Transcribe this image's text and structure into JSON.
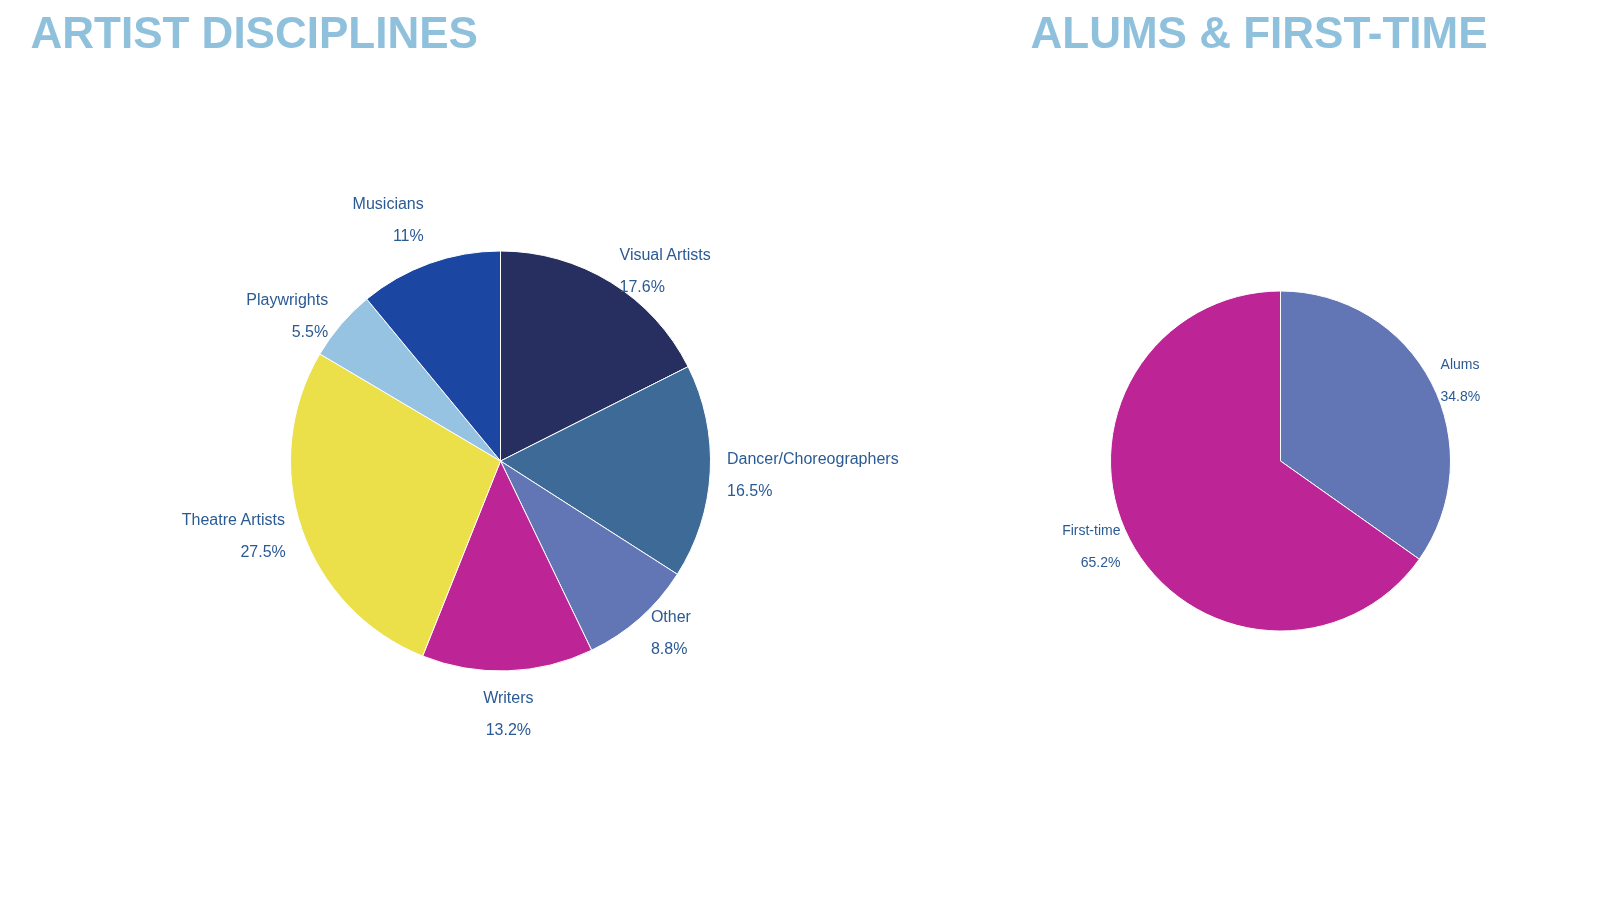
{
  "chart_data": [
    {
      "type": "pie",
      "title": "ARTIST DISCIPLINES",
      "categories": [
        "Visual Artists",
        "Dancer/Choreographers",
        "Other",
        "Writers",
        "Theatre Artists",
        "Playwrights",
        "Musicians"
      ],
      "values": [
        17.6,
        16.5,
        8.8,
        13.2,
        27.5,
        5.5,
        11
      ],
      "colors": [
        "#262f60",
        "#3d6a96",
        "#6275b5",
        "#bd2596",
        "#ebdf4a",
        "#96c3e2",
        "#1b47a2"
      ],
      "value_labels": [
        "17.6%",
        "16.5%",
        "8.8%",
        "13.2%",
        "27.5%",
        "5.5%",
        "11%"
      ]
    },
    {
      "type": "pie",
      "title": "ALUMS & FIRST-TIME",
      "categories": [
        "Alums",
        "First-time"
      ],
      "values": [
        34.8,
        65.2
      ],
      "colors": [
        "#6275b5",
        "#bd2596"
      ],
      "value_labels": [
        "34.8%",
        "65.2%"
      ]
    }
  ]
}
